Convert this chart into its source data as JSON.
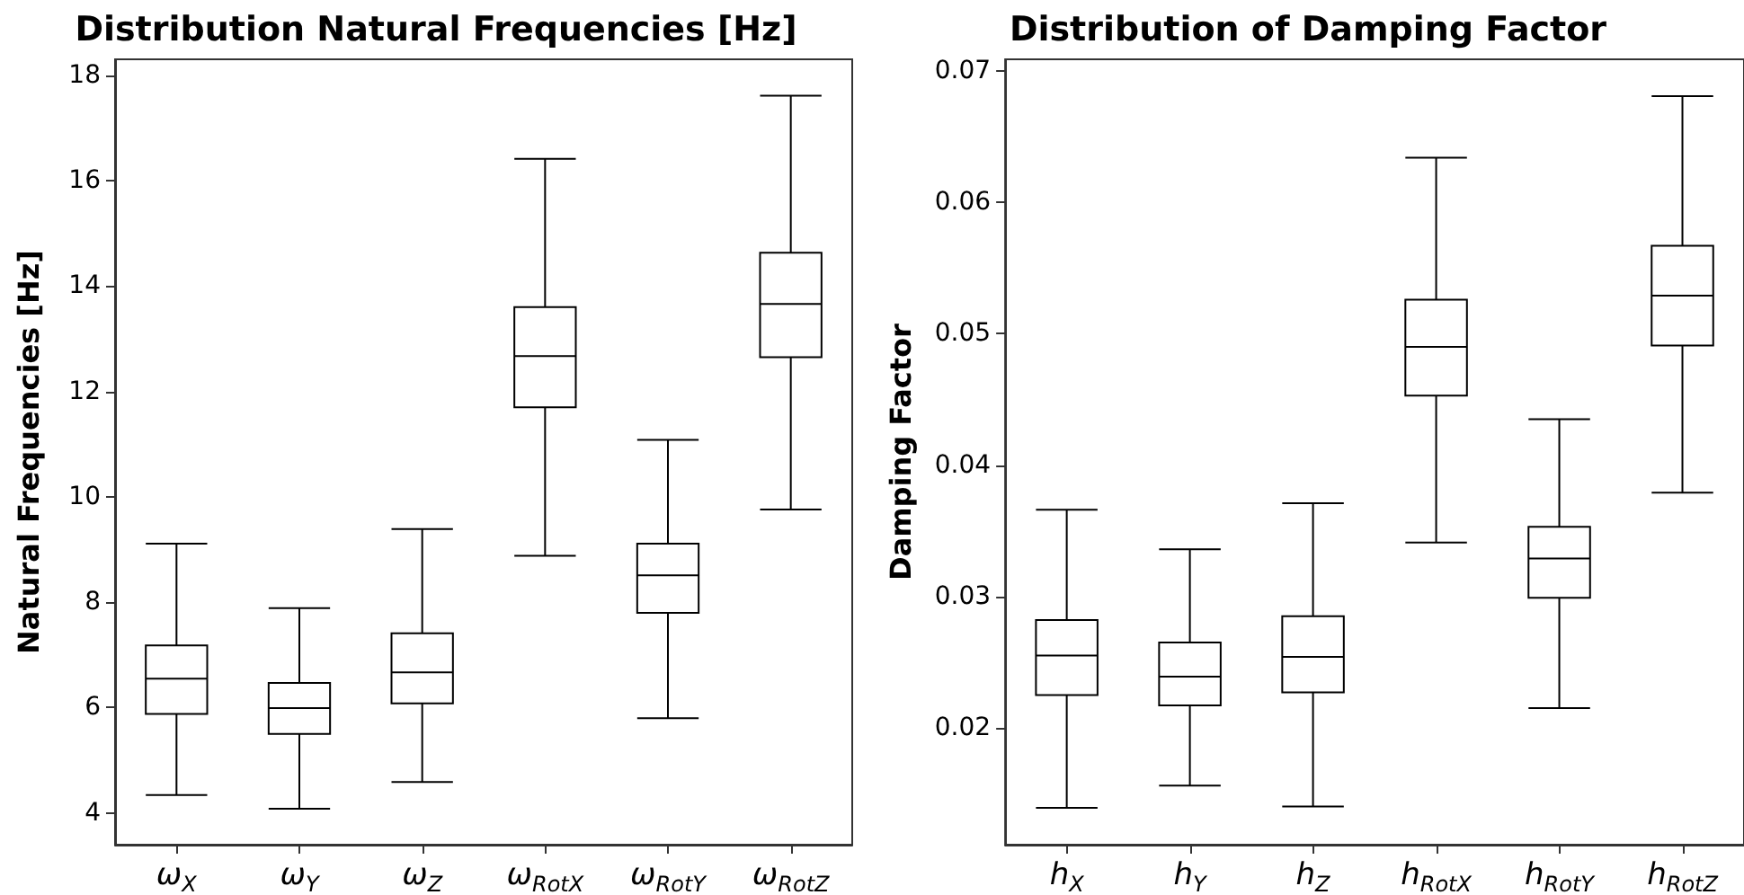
{
  "chart_data": [
    {
      "type": "box",
      "title": "Distribution Natural Frequencies [Hz]",
      "ylabel": "Natural Frequencies [Hz]",
      "categories": [
        "ω$_{X}$",
        "ω$_{Y}$",
        "ω$_{Z}$",
        "ω$_{RotX}$",
        "ω$_{RotY}$",
        "ω$_{RotZ}$"
      ],
      "color": "#000000",
      "ylim": [
        3.4,
        18.3
      ],
      "yticks": [
        4,
        6,
        8,
        10,
        12,
        14,
        16,
        18
      ],
      "grid": false,
      "boxes": [
        {
          "low": 4.34,
          "q1": 5.88,
          "median": 6.55,
          "q3": 7.18,
          "high": 9.11
        },
        {
          "low": 4.08,
          "q1": 5.5,
          "median": 5.99,
          "q3": 6.47,
          "high": 7.89
        },
        {
          "low": 4.59,
          "q1": 6.08,
          "median": 6.67,
          "q3": 7.41,
          "high": 9.39
        },
        {
          "low": 8.88,
          "q1": 11.7,
          "median": 12.67,
          "q3": 13.6,
          "high": 16.41
        },
        {
          "low": 5.8,
          "q1": 7.8,
          "median": 8.51,
          "q3": 9.11,
          "high": 11.08
        },
        {
          "low": 9.76,
          "q1": 12.65,
          "median": 13.66,
          "q3": 14.63,
          "high": 17.61
        }
      ]
    },
    {
      "type": "box",
      "title": "Distribution of Damping Factor",
      "ylabel": "Damping Factor",
      "categories": [
        "h$_{X}$",
        "h$_{Y}$",
        "h$_{Z}$",
        "h$_{RotX}$",
        "h$_{RotY}$",
        "h$_{RotZ}$"
      ],
      "color": "#000000",
      "ylim": [
        0.0111,
        0.0709
      ],
      "yticks": [
        0.02,
        0.03,
        0.04,
        0.05,
        0.06,
        0.07
      ],
      "grid": false,
      "boxes": [
        {
          "low": 0.0139,
          "q1": 0.0225,
          "median": 0.0255,
          "q3": 0.0282,
          "high": 0.0366
        },
        {
          "low": 0.0156,
          "q1": 0.0217,
          "median": 0.0239,
          "q3": 0.0265,
          "high": 0.0336
        },
        {
          "low": 0.014,
          "q1": 0.0227,
          "median": 0.0254,
          "q3": 0.0285,
          "high": 0.0371
        },
        {
          "low": 0.0341,
          "q1": 0.0453,
          "median": 0.049,
          "q3": 0.0526,
          "high": 0.0634
        },
        {
          "low": 0.0215,
          "q1": 0.0299,
          "median": 0.0329,
          "q3": 0.0353,
          "high": 0.0435
        },
        {
          "low": 0.0379,
          "q1": 0.0491,
          "median": 0.0529,
          "q3": 0.0567,
          "high": 0.0681
        }
      ]
    }
  ]
}
